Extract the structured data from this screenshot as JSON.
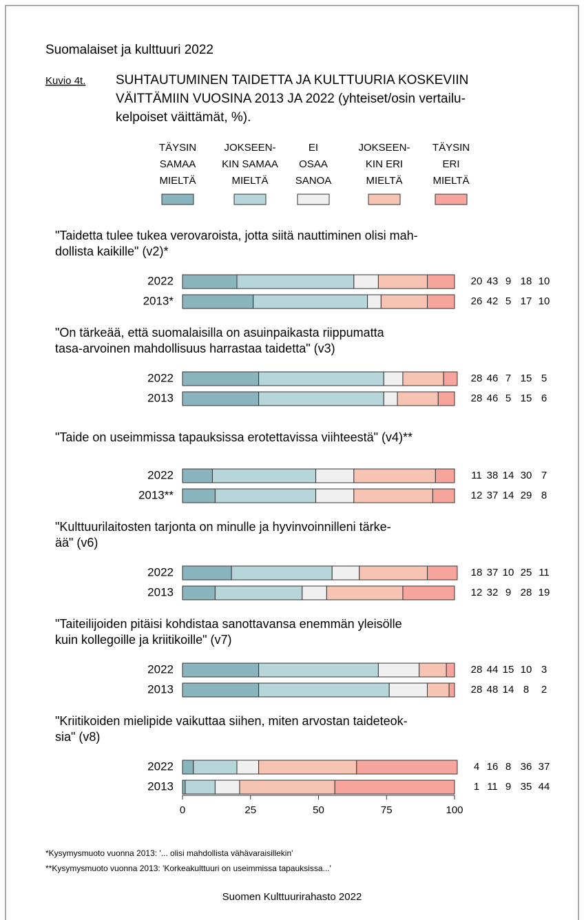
{
  "header": "Suomalaiset ja kulttuuri 2022",
  "figure_label": "Kuvio 4t.",
  "chart_data": {
    "type": "bar",
    "orientation": "horizontal",
    "stacked": true,
    "title_lines": [
      "SUHTAUTUMINEN TAIDETTA JA KULTTUURIA KOSKEVIIN",
      "VÄITTÄMIIN VUOSINA 2013 JA 2022 (yhteiset/osin vertailu-",
      "kelpoiset väittämät, %)."
    ],
    "legend": [
      {
        "lines": [
          "TÄYSIN",
          "SAMAA",
          "MIELTÄ"
        ],
        "color": "#8ab5bf"
      },
      {
        "lines": [
          "JOKSEEN-",
          "KIN SAMAA",
          "MIELTÄ"
        ],
        "color": "#b6d6d9"
      },
      {
        "lines": [
          "EI",
          "OSAA",
          "SANOA"
        ],
        "color": "#f0f0f0"
      },
      {
        "lines": [
          "JOKSEEN-",
          "KIN ERI",
          "MIELTÄ"
        ],
        "color": "#f7c4b4"
      },
      {
        "lines": [
          "TÄYSIN",
          "ERI",
          "MIELTÄ"
        ],
        "color": "#f6a49c"
      }
    ],
    "groups": [
      {
        "lines": [
          "\"Taidetta tulee tukea verovaroista, jotta siitä nauttiminen olisi mah-",
          " dollista kaikille\" (v2)*"
        ],
        "rows": [
          {
            "label": "2022",
            "values": [
              20,
              43,
              9,
              18,
              10
            ]
          },
          {
            "label": "2013*",
            "values": [
              26,
              42,
              5,
              17,
              10
            ]
          }
        ]
      },
      {
        "lines": [
          "\"On tärkeää, että suomalaisilla on asuinpaikasta riippumatta",
          " tasa-arvoinen mahdollisuus harrastaa taidetta\" (v3)"
        ],
        "rows": [
          {
            "label": "2022",
            "values": [
              28,
              46,
              7,
              15,
              5
            ]
          },
          {
            "label": "2013",
            "values": [
              28,
              46,
              5,
              15,
              6
            ]
          }
        ]
      },
      {
        "lines": [
          "\"Taide on useimmissa tapauksissa erotettavissa viihteestä\" (v4)**"
        ],
        "rows": [
          {
            "label": "2022",
            "values": [
              11,
              38,
              14,
              30,
              7
            ]
          },
          {
            "label": "2013**",
            "values": [
              12,
              37,
              14,
              29,
              8
            ]
          }
        ]
      },
      {
        "lines": [
          "\"Kulttuurilaitosten tarjonta on minulle ja hyvinvoinnilleni tärke-",
          " ää\" (v6)"
        ],
        "rows": [
          {
            "label": "2022",
            "values": [
              18,
              37,
              10,
              25,
              11
            ]
          },
          {
            "label": "2013",
            "values": [
              12,
              32,
              9,
              28,
              19
            ]
          }
        ]
      },
      {
        "lines": [
          "\"Taiteilijoiden pitäisi kohdistaa sanottavansa enemmän yleisölle",
          " kuin kollegoille ja kriitikoille\" (v7)"
        ],
        "rows": [
          {
            "label": "2022",
            "values": [
              28,
              44,
              15,
              10,
              3
            ]
          },
          {
            "label": "2013",
            "values": [
              28,
              48,
              14,
              8,
              2
            ]
          }
        ]
      },
      {
        "lines": [
          "\"Kriitikoiden mielipide vaikuttaa siihen, miten arvostan taideteok-",
          " sia\" (v8)"
        ],
        "rows": [
          {
            "label": "2022",
            "values": [
              4,
              16,
              8,
              36,
              37
            ]
          },
          {
            "label": "2013",
            "values": [
              1,
              11,
              9,
              35,
              44
            ]
          }
        ]
      }
    ],
    "xlim": [
      0,
      100
    ],
    "xticks": [
      0,
      25,
      50,
      75,
      100
    ]
  },
  "footnotes": [
    "*Kysymysmuoto vuonna 2013: '... olisi mahdollista vähävaraisillekin'",
    "**Kysymysmuoto vuonna 2013: 'Korkeakulttuuri on useimmissa tapauksissa...'"
  ],
  "source": "Suomen Kulttuurirahasto 2022"
}
